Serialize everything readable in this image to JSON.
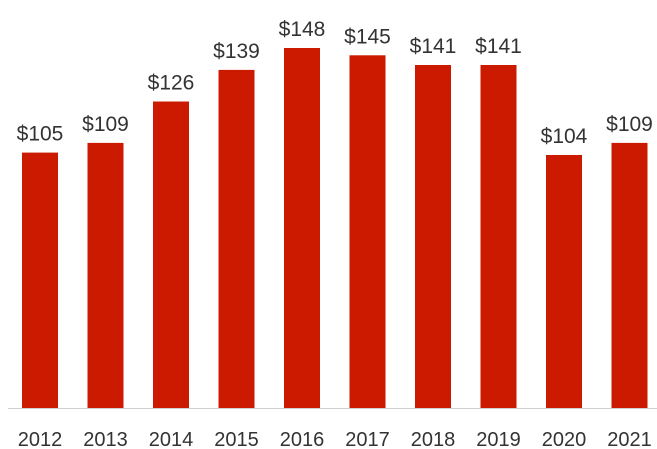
{
  "chart_data": {
    "type": "bar",
    "title": "",
    "xlabel": "",
    "ylabel": "",
    "categories": [
      "2012",
      "2013",
      "2014",
      "2015",
      "2016",
      "2017",
      "2018",
      "2019",
      "2020",
      "2021"
    ],
    "values": [
      105,
      109,
      126,
      139,
      148,
      145,
      141,
      141,
      104,
      109
    ],
    "value_labels": [
      "$105",
      "$109",
      "$126",
      "$139",
      "$148",
      "$145",
      "$141",
      "$141",
      "$104",
      "$109"
    ],
    "ylim": [
      0,
      148
    ],
    "grid": false,
    "legend": "none",
    "colors": {
      "bar": "#cc1a00",
      "axis": "#d0d0d0",
      "text": "#333333"
    }
  }
}
